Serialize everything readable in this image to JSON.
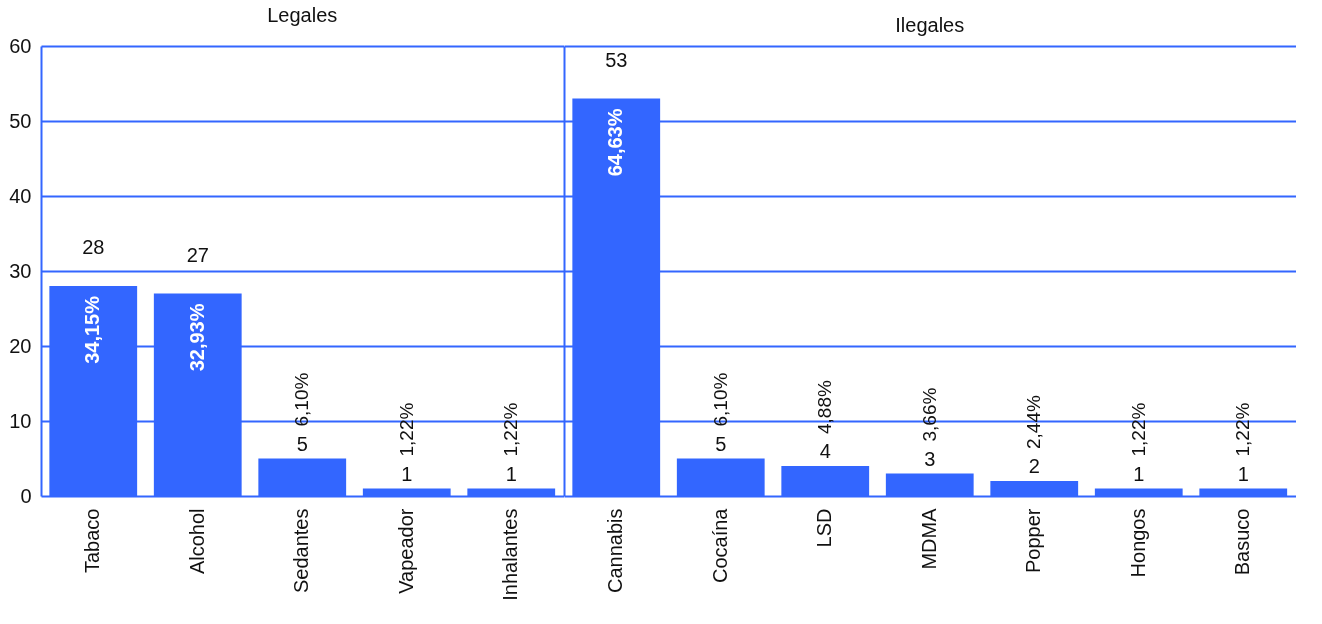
{
  "chart_data": [
    {
      "type": "bar",
      "title": "Legales",
      "categories": [
        "Tabaco",
        "Alcohol",
        "Sedantes",
        "Vapeador",
        "Inhalantes"
      ],
      "values": [
        28,
        27,
        5,
        1,
        1
      ],
      "color": "#3366ff",
      "ylim": [
        0,
        60
      ],
      "yticks": [
        0,
        10,
        20,
        30,
        40,
        50,
        60
      ],
      "grid": "y",
      "data_labels": true,
      "annotations": [
        {
          "text": "34,15%",
          "x": "Tabaco",
          "y": 28
        },
        {
          "text": "32,93%",
          "x": "Alcohol",
          "y": 27
        },
        {
          "text": "6,10%",
          "x": "Sedantes",
          "y": 5
        },
        {
          "text": "1,22%",
          "x": "Vapeador",
          "y": 1
        },
        {
          "text": "1,22%",
          "x": "Inhalantes",
          "y": 1
        }
      ]
    },
    {
      "type": "bar",
      "title": "Ilegales",
      "categories": [
        "Cannabis",
        "Cocaína",
        "LSD",
        "MDMA",
        "Popper",
        "Hongos",
        "Basuco"
      ],
      "values": [
        53,
        5,
        4,
        3,
        2,
        1,
        1
      ],
      "color": "#3366ff",
      "ylim": [
        0,
        60
      ],
      "yticks": [
        0,
        10,
        20,
        30,
        40,
        50,
        60
      ],
      "grid": "y",
      "data_labels": true,
      "tick_labels": "x",
      "annotations": [
        {
          "text": "64,63%",
          "x": "Cannabis",
          "y": 53
        },
        {
          "text": "6,10%",
          "x": "Cocaína",
          "y": 5
        },
        {
          "text": "4,88%",
          "x": "LSD",
          "y": 4
        },
        {
          "text": "3,66%",
          "x": "MDMA",
          "y": 3
        },
        {
          "text": "2,44%",
          "x": "Popper",
          "y": 2
        },
        {
          "text": "1,22%",
          "x": "Hongos",
          "y": 1
        },
        {
          "text": "1,22%",
          "x": "Basuco",
          "y": 1
        }
      ]
    }
  ]
}
